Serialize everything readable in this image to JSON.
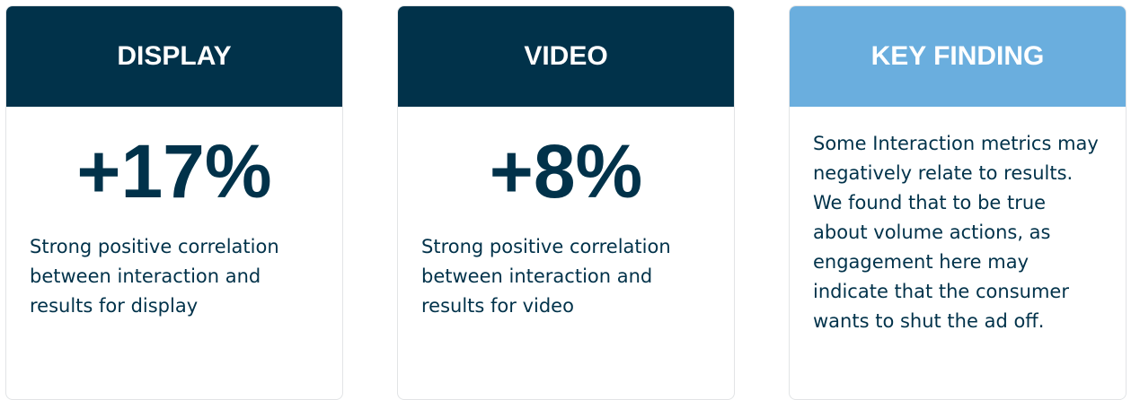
{
  "cards": [
    {
      "title": "DISPLAY",
      "stat": "+17%",
      "text": "Strong positive correlation between interaction and results for display"
    },
    {
      "title": "VIDEO",
      "stat": "+8%",
      "text": "Strong positive correlation between interaction and results for video"
    },
    {
      "title": "KEY FINDING",
      "text": "Some Interaction metrics may negatively relate to results. We found that to be true about volume actions, as engagement here may indicate that the consumer wants to shut the ad off."
    }
  ]
}
